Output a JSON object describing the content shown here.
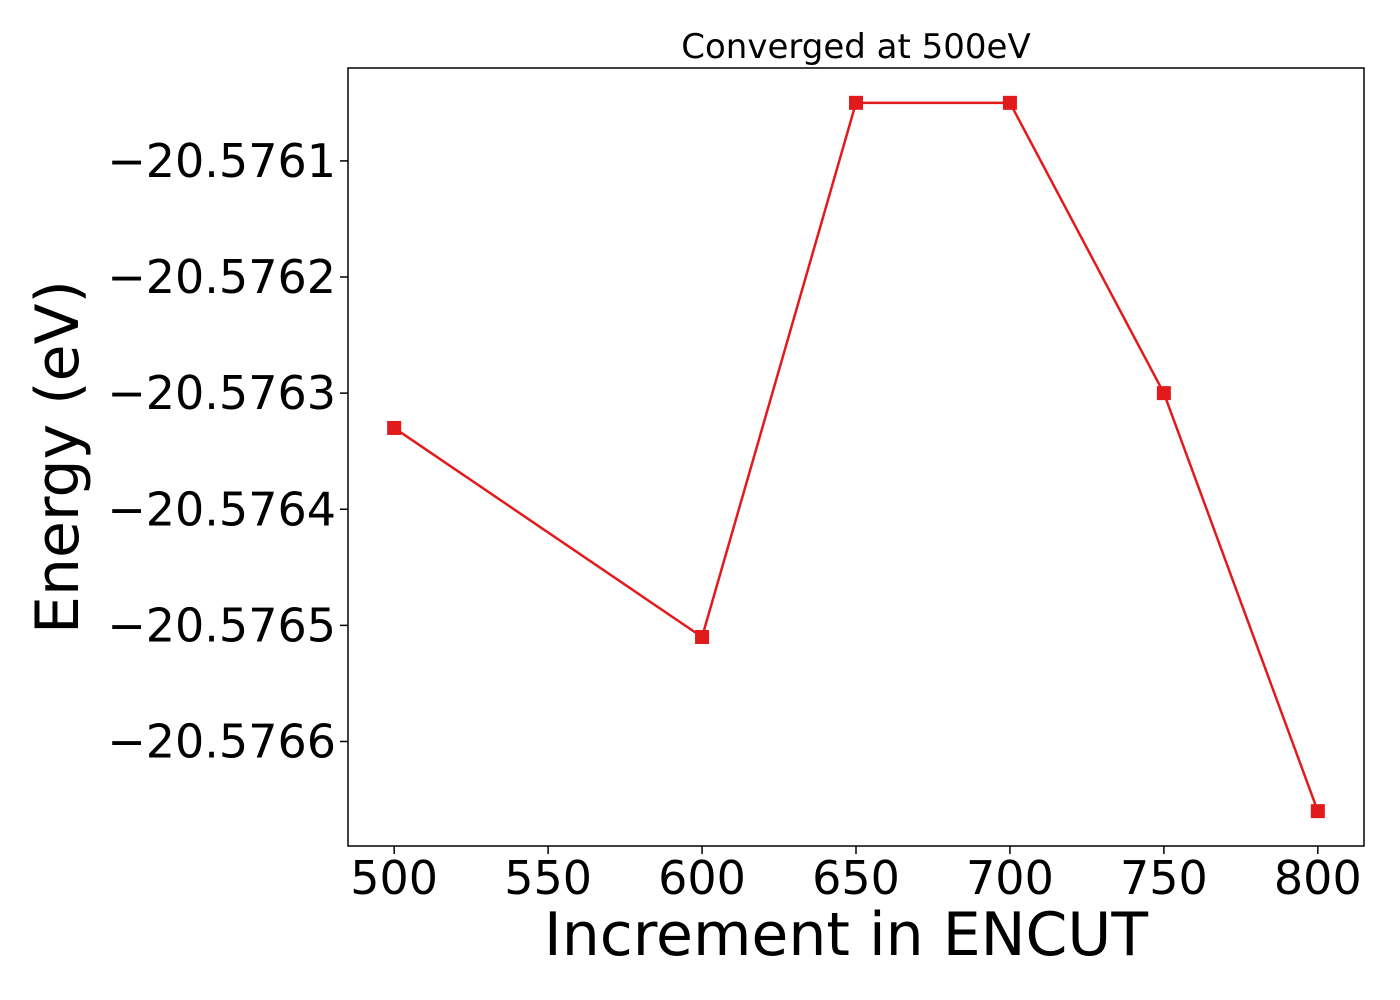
{
  "chart_data": {
    "type": "line",
    "title": "Converged at 500eV",
    "xlabel": "Increment in ENCUT",
    "ylabel": "Energy (eV)",
    "x": [
      500,
      600,
      650,
      700,
      750,
      800
    ],
    "series": [
      {
        "values": [
          -20.57633,
          -20.57651,
          -20.57605,
          -20.57605,
          -20.5763,
          -20.57666
        ],
        "color": "#e31a1c",
        "marker": "square"
      }
    ],
    "xlim": [
      485,
      815
    ],
    "ylim": [
      -20.57669,
      -20.57602
    ],
    "xticks": [
      500,
      550,
      600,
      650,
      700,
      750,
      800
    ],
    "xtick_labels": [
      "500",
      "550",
      "600",
      "650",
      "700",
      "750",
      "800"
    ],
    "yticks": [
      -20.5761,
      -20.5762,
      -20.5763,
      -20.5764,
      -20.5765,
      -20.5766
    ],
    "ytick_labels": [
      "−20.5761",
      "−20.5762",
      "−20.5763",
      "−20.5764",
      "−20.5765",
      "−20.5766"
    ],
    "grid": false,
    "legend": "none"
  }
}
